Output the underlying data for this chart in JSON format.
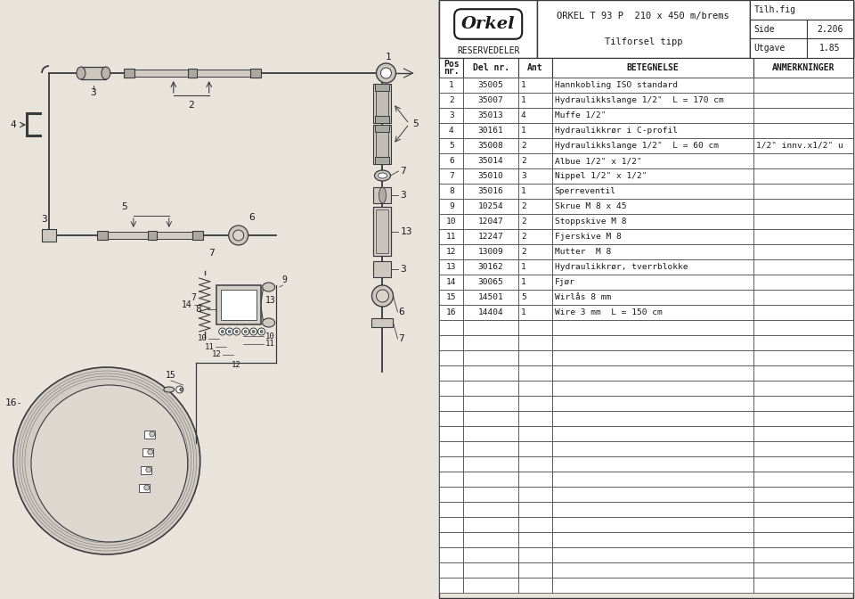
{
  "bg_color": "#e8e4dc",
  "title_model": "ORKEL T 93 P  210 x 450 m/brems",
  "title_sub": "Tilforsel tipp",
  "tilh_fig": "Tilh.fig",
  "side_label": "Side",
  "side_value": "2.206",
  "utgave_label": "Utgave",
  "utgave_value": "1.85",
  "col_headers": [
    "Pos\nnr.",
    "Del nr.",
    "Ant",
    "BETEGNELSE",
    "ANMERKNINGER"
  ],
  "rows": [
    [
      "1",
      "35005",
      "1",
      "Hannkobling ISO standard",
      ""
    ],
    [
      "2",
      "35007",
      "1",
      "Hydraulikkslange 1/2\"  L = 170 cm",
      ""
    ],
    [
      "3",
      "35013",
      "4",
      "Muffe 1/2\"",
      ""
    ],
    [
      "4",
      "30161",
      "1",
      "Hydraulikkrør i C-profil",
      ""
    ],
    [
      "5",
      "35008",
      "2",
      "Hydraulikkslange 1/2\"  L = 60 cm",
      "1/2\" innv.x1/2\" u"
    ],
    [
      "6",
      "35014",
      "2",
      "Albue 1/2\" x 1/2\"",
      ""
    ],
    [
      "7",
      "35010",
      "3",
      "Nippel 1/2\" x 1/2\"",
      ""
    ],
    [
      "8",
      "35016",
      "1",
      "Sperreventil",
      ""
    ],
    [
      "9",
      "10254",
      "2",
      "Skrue M 8 x 45",
      ""
    ],
    [
      "10",
      "12047",
      "2",
      "Stoppskive M 8",
      ""
    ],
    [
      "11",
      "12247",
      "2",
      "Fjerskive M 8",
      ""
    ],
    [
      "12",
      "13009",
      "2",
      "Mutter  M 8",
      ""
    ],
    [
      "13",
      "30162",
      "1",
      "Hydraulikkrør, tverrblokke",
      ""
    ],
    [
      "14",
      "30065",
      "1",
      "Fjør",
      ""
    ],
    [
      "15",
      "14501",
      "5",
      "Wirlås 8 mm",
      ""
    ],
    [
      "16",
      "14404",
      "1",
      "Wire 3 mm  L = 150 cm",
      ""
    ]
  ],
  "line_color": "#3a3a3a",
  "text_color": "#1a1a1a",
  "draw_bg": "#dcd8d0",
  "table_bg": "#e8e4dc",
  "row_colors": [
    "#f5f2ee",
    "#eeebe5"
  ]
}
